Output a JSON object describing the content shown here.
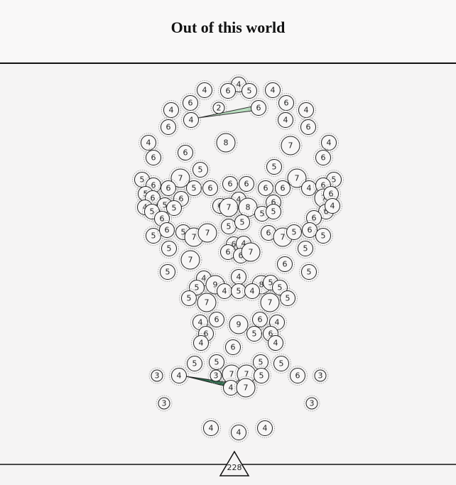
{
  "title": "Out of this world",
  "level": "228",
  "nodes": [
    4,
    6,
    5,
    4,
    4,
    6,
    6,
    4,
    4,
    2,
    6,
    4,
    4,
    6,
    6,
    4,
    4,
    8,
    7,
    6,
    6,
    6,
    5,
    5,
    5,
    7,
    7,
    5,
    6,
    6,
    5,
    6,
    6,
    6,
    6,
    6,
    4,
    6,
    5,
    6,
    6,
    4,
    6,
    7,
    6,
    4,
    5,
    5,
    6,
    7,
    8,
    5,
    5,
    6,
    4,
    5,
    6,
    6,
    5,
    5,
    5,
    6,
    5,
    7,
    7,
    6,
    7,
    5,
    6,
    5,
    6,
    4,
    5,
    5,
    6,
    6,
    7,
    7,
    6,
    5,
    5,
    4,
    4,
    9,
    8,
    5,
    5,
    5,
    4,
    5,
    4,
    5,
    5,
    7,
    7,
    4,
    6,
    9,
    6,
    4,
    6,
    5,
    6,
    4,
    4,
    6,
    5,
    5,
    5,
    5,
    3,
    4,
    3,
    7,
    7,
    5,
    6,
    3,
    4,
    7,
    3,
    3,
    4,
    4,
    4
  ]
}
